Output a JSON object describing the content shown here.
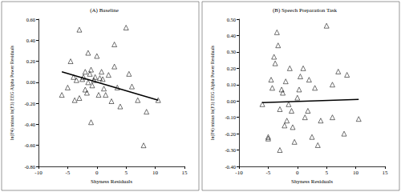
{
  "chart_data": [
    {
      "type": "scatter",
      "title": "(A) Baseline",
      "x_label": "Shyness Residuals",
      "y_label": "ln(F4) minus ln(F3) EEG Alpha Power Residuals",
      "xlim": [
        -10,
        15
      ],
      "xticks": [
        -10,
        -5,
        0,
        5,
        10,
        15
      ],
      "ylim": [
        -0.8,
        0.6
      ],
      "yticks": [
        {
          "value": -0.8,
          "label": "-0.80"
        },
        {
          "value": -0.6,
          "label": "-0.60"
        },
        {
          "value": -0.4,
          "label": "-0.40"
        },
        {
          "value": -0.2,
          "label": "-0.20"
        },
        {
          "value": 0,
          "label": "0.00"
        },
        {
          "value": 0.2,
          "label": "0.20"
        },
        {
          "value": 0.4,
          "label": "0.40"
        },
        {
          "value": 0.6,
          "label": "0.60"
        }
      ],
      "grid": false,
      "series": [
        {
          "type": "scatter",
          "marker": "triangle",
          "color": "#000000",
          "x": [
            -6,
            -5,
            -4.5,
            -4,
            -3.8,
            -3.5,
            -3,
            -3,
            -2.5,
            -2.3,
            -2,
            -2,
            -1.7,
            -1.5,
            -1.2,
            -1,
            -1,
            -0.8,
            -0.5,
            -0.3,
            0,
            0.3,
            0.5,
            0.8,
            1,
            1.2,
            1.5,
            2,
            2.5,
            3,
            3,
            3.5,
            4,
            5,
            5.5,
            6,
            7,
            8,
            8.5,
            10.5,
            -1.5
          ],
          "values": [
            -0.12,
            -0.05,
            0.2,
            0.05,
            -0.17,
            0.02,
            -0.15,
            0.5,
            0.03,
            0.05,
            0.1,
            -0.07,
            -0.1,
            0.0,
            0.08,
            0.12,
            -0.38,
            -0.03,
            0.02,
            0.05,
            0.25,
            -0.12,
            0.04,
            0.1,
            0.03,
            -0.06,
            -0.12,
            0.07,
            -0.18,
            0.36,
            0.15,
            -0.05,
            -0.23,
            0.52,
            0.08,
            -0.04,
            -0.17,
            -0.6,
            -0.28,
            -0.17,
            0.28
          ]
        },
        {
          "type": "line",
          "line_style": "solid",
          "color": "#000000",
          "x": [
            -6,
            10.5
          ],
          "values": [
            0.1,
            -0.17
          ]
        }
      ]
    },
    {
      "type": "scatter",
      "title": "(B) Speech Preparation Task",
      "x_label": "Shyness Residuals",
      "y_label": "ln(F4) minus ln(F3) EEG Alpha Power Residuals",
      "xlim": [
        -10,
        15
      ],
      "xticks": [
        -10,
        -5,
        0,
        5,
        10,
        15
      ],
      "ylim": [
        -0.4,
        0.5
      ],
      "yticks": [
        {
          "value": -0.4,
          "label": "-0.40"
        },
        {
          "value": -0.3,
          "label": "-0.30"
        },
        {
          "value": -0.2,
          "label": "-0.20"
        },
        {
          "value": -0.1,
          "label": "-0.10"
        },
        {
          "value": 0,
          "label": "0.00"
        },
        {
          "value": 0.1,
          "label": "0.10"
        },
        {
          "value": 0.2,
          "label": "0.20"
        },
        {
          "value": 0.3,
          "label": "0.30"
        },
        {
          "value": 0.4,
          "label": "0.40"
        },
        {
          "value": 0.5,
          "label": "0.50"
        }
      ],
      "grid": false,
      "series": [
        {
          "type": "scatter",
          "marker": "triangle",
          "color": "#000000",
          "x": [
            -6,
            -5,
            -5,
            -4.5,
            -4.3,
            -4,
            -3.8,
            -3.5,
            -3.3,
            -3,
            -3,
            -2.7,
            -2.5,
            -2.2,
            -2,
            -1.8,
            -1.5,
            -1.3,
            -1,
            -0.8,
            -0.5,
            0,
            0.3,
            0.5,
            1,
            1.3,
            1.8,
            2,
            2.5,
            3,
            3.5,
            4,
            5,
            6,
            6,
            7,
            8,
            8.5,
            10.5
          ],
          "values": [
            -0.02,
            -0.22,
            -0.23,
            0.13,
            0.08,
            0.27,
            0.23,
            0.42,
            0.34,
            -0.3,
            -0.05,
            0.07,
            0.05,
            -0.15,
            0.12,
            -0.12,
            -0.02,
            0.2,
            -0.06,
            -0.16,
            -0.25,
            0.02,
            0.07,
            0.15,
            0.2,
            -0.1,
            -0.06,
            0.13,
            -0.22,
            0.08,
            -0.27,
            -0.12,
            0.46,
            0.1,
            -0.1,
            0.18,
            -0.2,
            0.16,
            -0.11
          ]
        },
        {
          "type": "line",
          "line_style": "solid",
          "color": "#000000",
          "x": [
            -6,
            10.5
          ],
          "values": [
            -0.01,
            0.01
          ]
        }
      ]
    }
  ]
}
